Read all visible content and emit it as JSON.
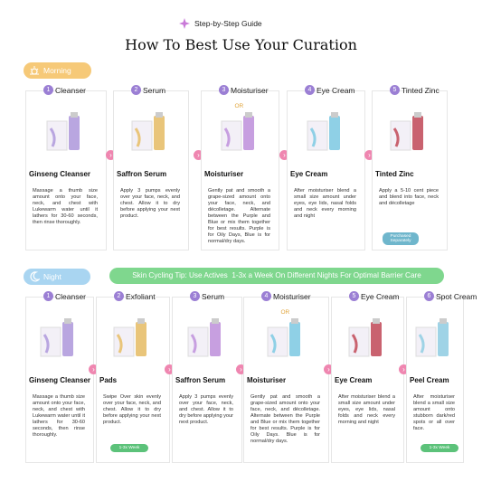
{
  "header": {
    "badge": "Step-by-Step Guide",
    "title": "How To Best Use Your Curation"
  },
  "sections": [
    {
      "label": "Morning",
      "steps": [
        {
          "number": "1",
          "step": "Cleanser",
          "product": "Ginseng Cleanser",
          "description": "Massage a thumb size amount onto your face, neck, and chest with Lukewarm water until it lathers for 30-60 seconds, then rinse thoroughly."
        },
        {
          "number": "2",
          "step": "Serum",
          "product": "Saffron Serum",
          "description": "Apply 3 pumps evenly over your face, neck, and chest. Allow it to dry before applying your next product."
        },
        {
          "number": "3",
          "step": "Moisturiser",
          "or": "OR",
          "product": "Moisturiser",
          "description": "Gently pat and smooth a grape-sized amount onto your face, neck, and décolletage. Alternate between the Purple and Blue or mix them together for best results. Purple is for Oily Days, Blue is for normal/dry days."
        },
        {
          "number": "4",
          "step": "Eye Cream",
          "product": "Eye Cream",
          "description": "After moisturiser blend a small size amount under eyes, eye lids, nasal folds and neck every morning and night"
        },
        {
          "number": "5",
          "step": "Tinted Zinc",
          "product": "Tinted Zinc",
          "description": "Apply a 5-10 cent piece and blend into face, neck and décolletage",
          "badge": "Purchased Separately"
        }
      ]
    },
    {
      "label": "Night",
      "tip": "Skin Cycling Tip: Use Actives  1-3x a Week On Different Nights For Optimal Barrier Care",
      "steps": [
        {
          "number": "1",
          "step": "Cleanser",
          "product": "Ginseng  Cleanser",
          "description": "Massage a thumb size amount onto your face, neck, and chest with Lukewarm water until it lathers for 30-60 seconds, then rinse thoroughly."
        },
        {
          "number": "2",
          "step": "Exfoliant",
          "product": "Pads",
          "description": "Swipe Over skin evenly over your face, neck, and chest. Allow it to dry before applying your next product.",
          "badge": "1-3x Week"
        },
        {
          "number": "3",
          "step": "Serum",
          "product": "Saffron Serum",
          "description": "Apply 3 pumps evenly over your face, neck, and chest. Allow it to dry before applying your next product."
        },
        {
          "number": "4",
          "step": "Moisturiser",
          "or": "OR",
          "product": "Moisturiser",
          "description": "Gently pat and smooth a grape-sized amount onto your face, neck, and décolletage. Alternate between the Purple and Blue or mix them together for best results. Purple is for Oily Days. Blue is for normal/dry days."
        },
        {
          "number": "5",
          "step": "Eye Cream",
          "product": "Eye Cream",
          "description": "After moisturiser blend a small size amount under eyes, eye lids, nasal folds and neck every morning and night"
        },
        {
          "number": "6",
          "step": "Spot Cream",
          "product": "Peel Cream",
          "description": "After moisturiser blend a small size amount onto stubborn dark/red spots or all over face.",
          "badge": "1-3x Week"
        }
      ]
    }
  ]
}
